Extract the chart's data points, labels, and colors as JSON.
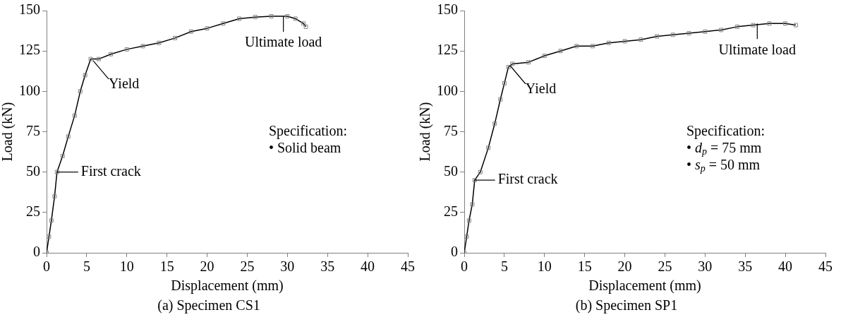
{
  "chart_data": [
    {
      "type": "line",
      "title": "(a) Specimen CS1",
      "xlabel": "Displacement (mm)",
      "ylabel": "Load (kN)",
      "color": "#000000",
      "marker": "square",
      "grid": false,
      "xlim": [
        0,
        45
      ],
      "ylim": [
        0,
        150
      ],
      "xticks": [
        0,
        5,
        10,
        15,
        20,
        25,
        30,
        35,
        40,
        45
      ],
      "yticks": [
        0,
        25,
        50,
        75,
        100,
        125,
        150
      ],
      "x": [
        0,
        0.3,
        0.6,
        1,
        1.3,
        2,
        2.7,
        3.5,
        4.2,
        4.8,
        5.5,
        6.5,
        8,
        10,
        12,
        14,
        16,
        18,
        20,
        22,
        24,
        26,
        28,
        30,
        31,
        32,
        32.3
      ],
      "values": [
        0,
        10,
        20,
        35,
        50,
        60,
        72,
        85,
        100,
        110,
        120,
        120,
        123,
        126,
        128,
        130,
        133,
        137,
        139,
        142,
        145,
        146,
        146.5,
        146.5,
        145,
        142,
        140
      ],
      "annotations": [
        {
          "text": "First crack",
          "x": 1.3,
          "y": 50
        },
        {
          "text": "Yield",
          "x": 5.8,
          "y": 119
        },
        {
          "text": "Ultimate load",
          "x": 29.5,
          "y": 146.5
        },
        "Specification:",
        "• Solid beam"
      ]
    },
    {
      "type": "line",
      "title": "(b) Specimen SP1",
      "xlabel": "Displacement (mm)",
      "ylabel": "Load (kN)",
      "color": "#000000",
      "marker": "square",
      "grid": false,
      "xlim": [
        0,
        45
      ],
      "ylim": [
        0,
        150
      ],
      "xticks": [
        0,
        5,
        10,
        15,
        20,
        25,
        30,
        35,
        40,
        45
      ],
      "yticks": [
        0,
        25,
        50,
        75,
        100,
        125,
        150
      ],
      "x": [
        0,
        0.3,
        0.6,
        1,
        1.3,
        2,
        3,
        3.8,
        4.5,
        5,
        5.5,
        6,
        8,
        10,
        12,
        14,
        16,
        18,
        20,
        22,
        24,
        26,
        28,
        30,
        32,
        34,
        36,
        38,
        40,
        41.3
      ],
      "values": [
        0,
        10,
        20,
        30,
        45,
        50,
        65,
        80,
        95,
        105,
        115,
        117,
        118,
        122,
        125,
        128,
        128,
        130,
        131,
        132,
        134,
        135,
        136,
        137,
        138,
        140,
        141,
        142,
        142,
        141
      ],
      "annotations": [
        {
          "text": "First crack",
          "x": 1.2,
          "y": 45
        },
        {
          "text": "Yield",
          "x": 5.7,
          "y": 116
        },
        {
          "text": "Ultimate load",
          "x": 36.5,
          "y": 142
        },
        "Specification:",
        "• d$_{p}$ = 75 mm",
        "• s$_{p}$ = 50 mm"
      ]
    }
  ]
}
